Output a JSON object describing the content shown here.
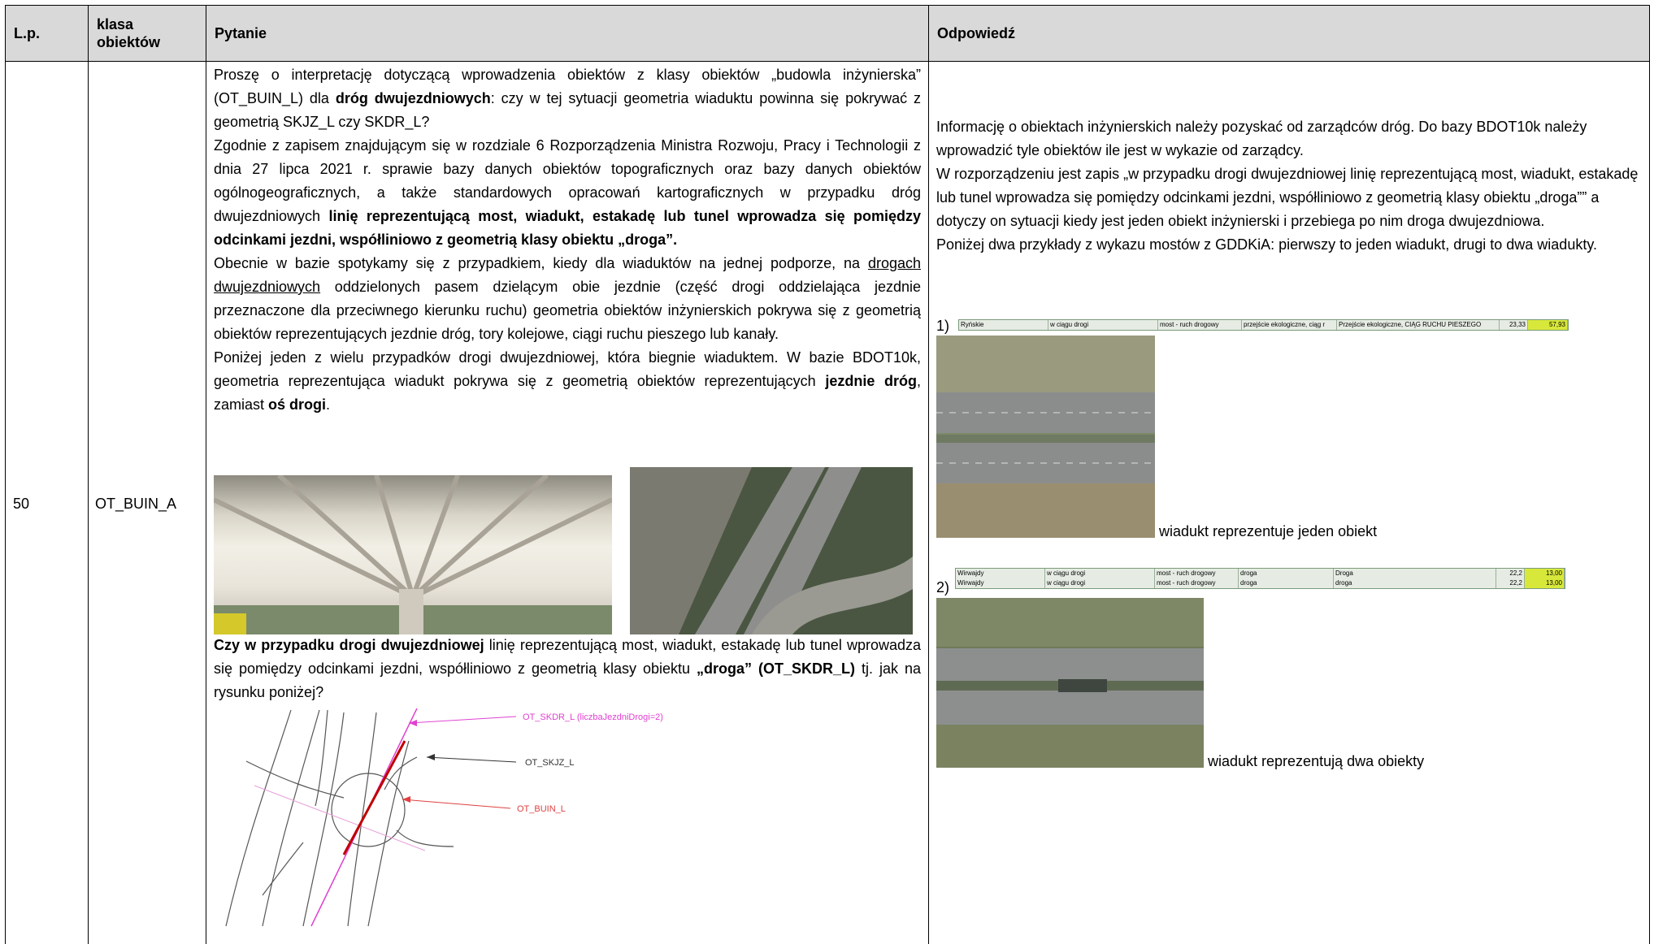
{
  "table": {
    "headers": [
      "L.p.",
      "klasa obiektów",
      "Pytanie",
      "Odpowiedź"
    ],
    "rows": [
      {
        "number": "50",
        "class": "OT_BUIN_A",
        "question": {
          "paragraphs": [
            [
              "Proszę o interpretację dotyczącą wprowadzenia obiektów z klasy obiektów „budowla inżynierska” (OT_BUIN_L) dla ",
              {
                "text": "dróg dwujezdniowych",
                "style": "bold"
              },
              ": czy w tej sytuacji geometria wiaduktu powinna się pokrywać z geometrią SKJZ_L czy SKDR_L?"
            ],
            [
              "Zgodnie z zapisem znajdującym się w rozdziale 6 Rozporządzenia Ministra Rozwoju, Pracy i Technologii z dnia 27 lipca 2021 r. sprawie bazy danych obiektów topograficznych oraz bazy danych obiektów ogólnogeograficznych, a także standardowych opracowań kartograficznych w przypadku dróg dwujezdniowych ",
              {
                "text": "linię reprezentującą most, wiadukt, estakadę lub tunel wprowadza się pomiędzy odcinkami jezdni, współliniowo z geometrią klasy obiektu „droga”.",
                "style": "bold"
              }
            ],
            [
              "Obecnie w bazie spotykamy się z przypadkiem, kiedy dla wiaduktów na jednej podporze, na ",
              {
                "text": "drogach dwujezdniowych",
                "style": "underline"
              },
              " oddzielonych pasem dzielącym obie jezdnie (część drogi oddzielająca jezdnie przeznaczone dla przeciwnego kierunku ruchu) geometria obiektów inżynierskich pokrywa się z geometrią obiektów reprezentujących jezdnie dróg, tory kolejowe, ciągi ruchu pieszego lub kanały."
            ],
            [
              "Poniżej jeden z wielu przypadków drogi dwujezdniowej, która biegnie wiaduktem. W bazie BDOT10k, geometria reprezentująca wiadukt pokrywa się z geometrią obiektów reprezentujących ",
              {
                "text": "jezdnie dróg",
                "style": "bold"
              },
              ", zamiast ",
              {
                "text": "oś drogi",
                "style": "bold"
              },
              "."
            ]
          ],
          "final_question": [
            {
              "text": "Czy w przypadku drogi dwujezdniowej",
              "style": "bold"
            },
            " linię reprezentującą most, wiadukt, estakadę lub tunel wprowadza się pomiędzy odcinkami jezdni, współliniowo z geometrią klasy obiektu ",
            {
              "text": "„droga” (OT_SKDR_L)",
              "style": "bold"
            },
            " tj. jak na rysunku poniżej?"
          ],
          "figure_labels": [
            "OT_SKDR_L (liczbaJezdniDrogi=2)",
            "OT_SKJZ_L",
            "OT_BUIN_L"
          ]
        },
        "answer": {
          "paragraphs": [
            "Informację o obiektach inżynierskich należy pozyskać od zarządców dróg. Do bazy BDOT10k należy wprowadzić tyle obiektów ile jest w wykazie od zarządcy.",
            "W rozporządzeniu jest zapis „w przypadku drogi dwujezdniowej linię reprezentującą most, wiadukt, estakadę lub tunel wprowadza się pomiędzy odcinkami jezdni, współliniowo z geometrią klasy obiektu „droga”” a dotyczy on sytuacji kiedy jest jeden obiekt inżynierski i przebiega po nim droga dwujezdniowa.",
            "Poniżej dwa przykłady z wykazu mostów z GDDKiA: pierwszy to jeden wiadukt, drugi to dwa wiadukty."
          ],
          "examples": [
            {
              "label": "1)",
              "sheet": [
                [
                  "Ryńskie",
                  "w ciągu drogi",
                  "most - ruch drogowy",
                  "przejście ekologiczne, ciąg r",
                  "Przejście ekologiczne, CIĄG RUCHU PIESZEGO",
                  "23,33",
                  "57,93"
                ]
              ],
              "caption": "wiadukt reprezentuje jeden obiekt"
            },
            {
              "label": "2)",
              "sheet": [
                [
                  "Wirwajdy",
                  "w ciągu drogi",
                  "most - ruch drogowy",
                  "droga",
                  "Droga",
                  "22,2",
                  "13,00"
                ],
                [
                  "Wirwajdy",
                  "w ciągu drogi",
                  "most - ruch drogowy",
                  "droga",
                  "droga",
                  "22,2",
                  "13,00"
                ]
              ],
              "caption": "wiadukt reprezentują dwa obiekty"
            }
          ]
        }
      }
    ]
  }
}
